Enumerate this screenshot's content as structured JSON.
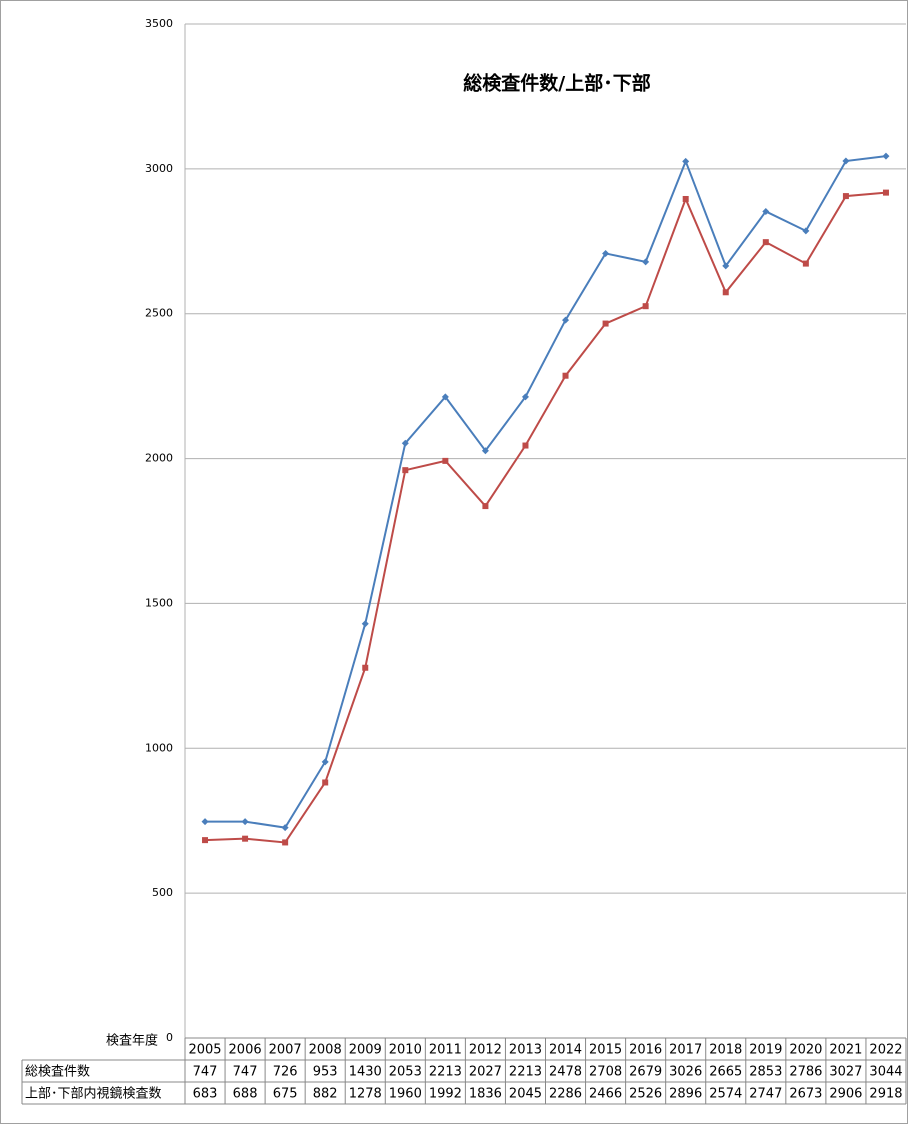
{
  "chart_data": {
    "type": "line",
    "title": "総検査件数/上部･下部",
    "x_label": "検査年度",
    "categories": [
      "2005",
      "2006",
      "2007",
      "2008",
      "2009",
      "2010",
      "2011",
      "2012",
      "2013",
      "2014",
      "2015",
      "2016",
      "2017",
      "2018",
      "2019",
      "2020",
      "2021",
      "2022"
    ],
    "series": [
      {
        "name": "総検査件数",
        "color": "#4a7ebb",
        "marker": "diamond",
        "values": [
          747,
          747,
          726,
          953,
          1430,
          2053,
          2213,
          2027,
          2213,
          2478,
          2708,
          2679,
          3026,
          2665,
          2853,
          2786,
          3027,
          3044
        ]
      },
      {
        "name": "上部･下部内視鏡検査数",
        "color": "#be4b48",
        "marker": "square",
        "values": [
          683,
          688,
          675,
          882,
          1278,
          1960,
          1992,
          1836,
          2045,
          2286,
          2466,
          2526,
          2896,
          2574,
          2747,
          2673,
          2906,
          2918
        ]
      }
    ],
    "ylim": [
      0,
      3500
    ],
    "yticks": [
      0,
      500,
      1000,
      1500,
      2000,
      2500,
      3000,
      3500
    ],
    "grid": true
  }
}
